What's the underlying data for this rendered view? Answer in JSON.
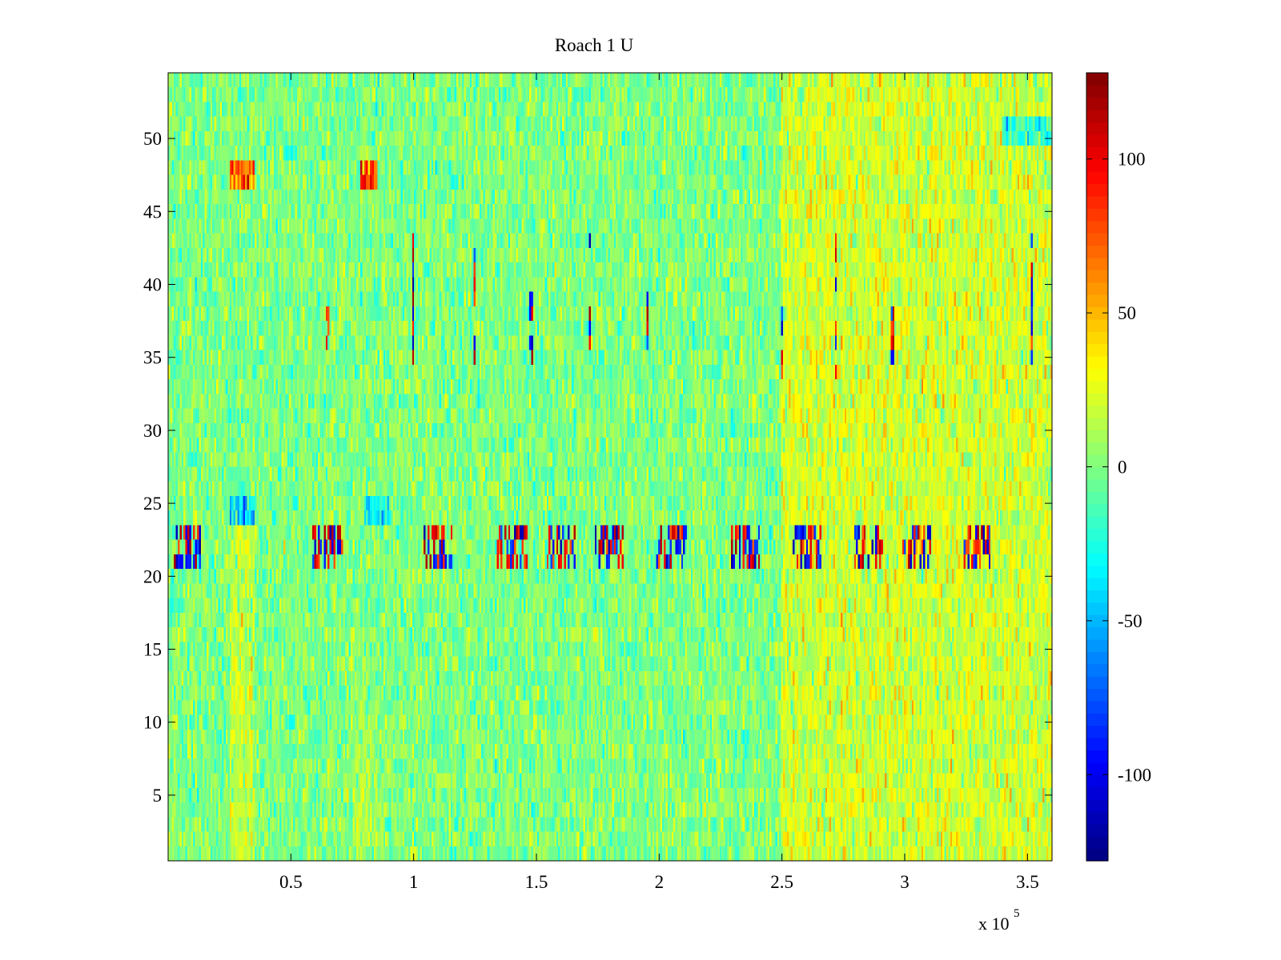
{
  "chart_data": {
    "type": "heatmap",
    "title": "Roach 1 U",
    "xlabel": "",
    "ylabel": "",
    "x_exponent_label": {
      "base": "x 10",
      "exponent": "5"
    },
    "xlim": [
      0,
      3.6
    ],
    "ylim": [
      0.5,
      54.5
    ],
    "xticks": [
      {
        "value": 0.5,
        "label": "0.5"
      },
      {
        "value": 1,
        "label": "1"
      },
      {
        "value": 1.5,
        "label": "1.5"
      },
      {
        "value": 2,
        "label": "2"
      },
      {
        "value": 2.5,
        "label": "2.5"
      },
      {
        "value": 3,
        "label": "3"
      },
      {
        "value": 3.5,
        "label": "3.5"
      }
    ],
    "yticks": [
      {
        "value": 5,
        "label": "5"
      },
      {
        "value": 10,
        "label": "10"
      },
      {
        "value": 15,
        "label": "15"
      },
      {
        "value": 20,
        "label": "20"
      },
      {
        "value": 25,
        "label": "25"
      },
      {
        "value": 30,
        "label": "30"
      },
      {
        "value": 35,
        "label": "35"
      },
      {
        "value": 40,
        "label": "40"
      },
      {
        "value": 45,
        "label": "45"
      },
      {
        "value": 50,
        "label": "50"
      }
    ],
    "rows": 54,
    "colormap": "jet",
    "clim": [
      -128,
      128
    ],
    "colorbar": {
      "ticks": [
        {
          "value": 100,
          "label": "100"
        },
        {
          "value": 50,
          "label": "50"
        },
        {
          "value": 0,
          "label": "0"
        },
        {
          "value": -50,
          "label": "-50"
        },
        {
          "value": -100,
          "label": "-100"
        }
      ]
    },
    "typical_value": 0,
    "hot_regions": [
      {
        "x_range": [
          2.5,
          3.6
        ],
        "y_range": [
          1,
          54
        ],
        "mean": 20
      },
      {
        "x_range": [
          0.25,
          0.35
        ],
        "y_range": [
          1,
          25
        ],
        "mean": 15
      },
      {
        "x_range": [
          0.75,
          0.85
        ],
        "y_range": [
          1,
          10
        ],
        "mean": 12
      },
      {
        "x_range": [
          0.25,
          0.35
        ],
        "y_range": [
          47,
          48
        ],
        "mean": 70
      },
      {
        "x_range": [
          0.78,
          0.85
        ],
        "y_range": [
          47,
          48
        ],
        "mean": 75
      }
    ],
    "cold_regions": [
      {
        "x_range": [
          0.25,
          0.35
        ],
        "y_range": [
          24,
          25
        ],
        "mean": -50
      },
      {
        "x_range": [
          0.8,
          0.9
        ],
        "y_range": [
          24,
          25
        ],
        "mean": -40
      },
      {
        "x_range": [
          3.4,
          3.6
        ],
        "y_range": [
          50,
          51
        ],
        "mean": -40
      }
    ],
    "burst_band": {
      "y_range": [
        21,
        23
      ],
      "x_centers": [
        0.08,
        0.65,
        1.1,
        1.4,
        1.6,
        1.8,
        2.05,
        2.35,
        2.6,
        2.85,
        3.05,
        3.3
      ],
      "amplitude": 120
    },
    "spike_columns": [
      {
        "x": 0.65,
        "rows": [
          36,
          38
        ]
      },
      {
        "x": 1.0,
        "rows": [
          35,
          43
        ]
      },
      {
        "x": 1.25,
        "rows": [
          35,
          43
        ]
      },
      {
        "x": 1.48,
        "rows": [
          35,
          39
        ]
      },
      {
        "x": 1.72,
        "rows": [
          36,
          43
        ]
      },
      {
        "x": 1.95,
        "rows": [
          36,
          39
        ]
      },
      {
        "x": 2.5,
        "rows": [
          34,
          38
        ]
      },
      {
        "x": 2.72,
        "rows": [
          34,
          43
        ]
      },
      {
        "x": 2.95,
        "rows": [
          35,
          38
        ]
      },
      {
        "x": 3.52,
        "rows": [
          35,
          43
        ]
      }
    ]
  }
}
